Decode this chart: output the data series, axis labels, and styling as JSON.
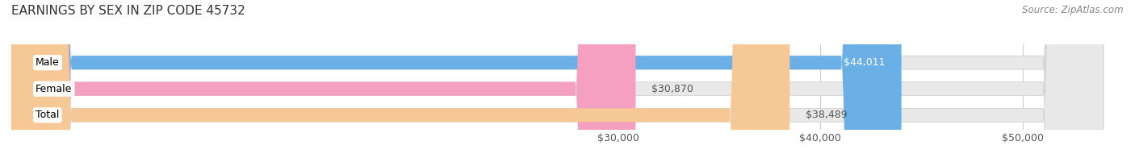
{
  "title": "EARNINGS BY SEX IN ZIP CODE 45732",
  "source": "Source: ZipAtlas.com",
  "categories": [
    "Male",
    "Female",
    "Total"
  ],
  "values": [
    44011,
    30870,
    38489
  ],
  "labels": [
    "$44,011",
    "$30,870",
    "$38,489"
  ],
  "bar_colors": [
    "#6aafe6",
    "#f5a0c0",
    "#f5c896"
  ],
  "xlim_min": 0,
  "xlim_max": 55000,
  "xticks": [
    30000,
    40000,
    50000
  ],
  "xtick_labels": [
    "$30,000",
    "$40,000",
    "$50,000"
  ],
  "background_color": "#ffffff",
  "bar_background_color": "#e8e8e8",
  "label_color_inside": "#ffffff",
  "label_color_outside": "#555555",
  "title_fontsize": 11,
  "source_fontsize": 8.5,
  "tick_fontsize": 9,
  "bar_label_fontsize": 9,
  "category_fontsize": 9,
  "bar_height": 0.52,
  "label_inside_threshold": 40000
}
